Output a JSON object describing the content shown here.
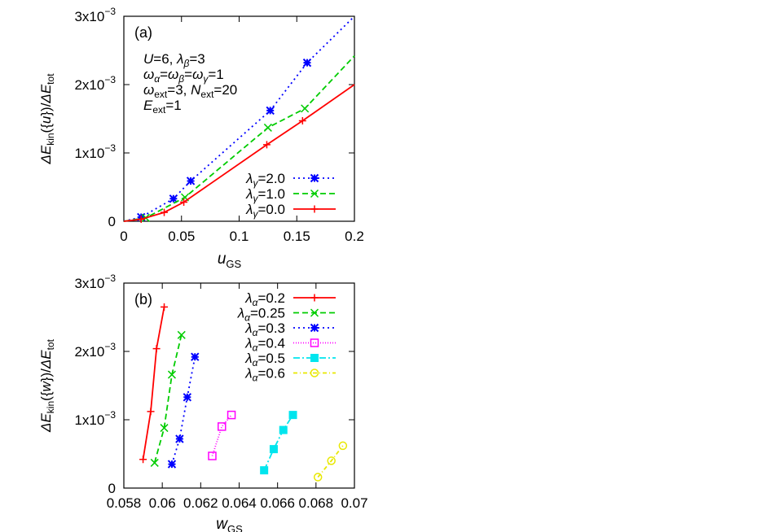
{
  "chart_data": [
    {
      "type": "line",
      "panel_label": "(a)",
      "xlabel": "u",
      "xlabel_sub": "GS",
      "ylabel": "ΔE_kin({u})/ΔE_tot",
      "xlim": [
        0,
        0.2
      ],
      "ylim": [
        0,
        0.003
      ],
      "xticks": [
        0,
        0.05,
        0.1,
        0.15,
        0.2
      ],
      "xtick_labels": [
        "0",
        "0.05",
        "0.1",
        "0.15",
        "0.2"
      ],
      "yticks": [
        0,
        0.001,
        0.002,
        0.003
      ],
      "ytick_labels": [
        {
          "base": "0",
          "exp": ""
        },
        {
          "base": "1x10",
          "exp": "−3"
        },
        {
          "base": "2x10",
          "exp": "−3"
        },
        {
          "base": "3x10",
          "exp": "−3"
        }
      ],
      "grid": false,
      "legend_placement": "bottom-right",
      "annotations": [
        [
          {
            "t": "U",
            "i": true
          },
          {
            "t": "=6, "
          },
          {
            "t": "λ",
            "i": true
          },
          {
            "t": "β",
            "i": true,
            "sub": true
          },
          {
            "t": "=3"
          }
        ],
        [
          {
            "t": "ω",
            "i": true
          },
          {
            "t": "α",
            "i": true,
            "sub": true
          },
          {
            "t": "="
          },
          {
            "t": "ω",
            "i": true
          },
          {
            "t": "β",
            "i": true,
            "sub": true
          },
          {
            "t": "="
          },
          {
            "t": "ω",
            "i": true
          },
          {
            "t": "γ",
            "i": true,
            "sub": true
          },
          {
            "t": "=1"
          }
        ],
        [
          {
            "t": "ω",
            "i": true
          },
          {
            "t": "ext",
            "sub": true
          },
          {
            "t": "=3, "
          },
          {
            "t": "N",
            "i": true
          },
          {
            "t": "ext",
            "sub": true
          },
          {
            "t": "=20"
          }
        ],
        [
          {
            "t": "E",
            "i": true
          },
          {
            "t": "ext",
            "sub": true
          },
          {
            "t": "=1"
          }
        ]
      ],
      "series": [
        {
          "name": "λγ=2.0",
          "label_sym": "λ",
          "label_sub": "γ",
          "label_val": "=2.0",
          "color": "#0000ff",
          "dash": "2,4",
          "marker": "star",
          "x": [
            0,
            0.015,
            0.043,
            0.058,
            0.127,
            0.159,
            0.2
          ],
          "y": [
            0.0,
            6e-05,
            0.00033,
            0.00059,
            0.00162,
            0.00232,
            0.003
          ]
        },
        {
          "name": "λγ=1.0",
          "label_sym": "λ",
          "label_sub": "γ",
          "label_val": "=1.0",
          "color": "#00cc00",
          "dash": "7,4",
          "marker": "x",
          "x": [
            0,
            0.019,
            0.053,
            0.125,
            0.157,
            0.2
          ],
          "y": [
            0.0,
            5e-05,
            0.00035,
            0.00137,
            0.00165,
            0.00242
          ]
        },
        {
          "name": "λγ=0.0",
          "label_sym": "λ",
          "label_sub": "γ",
          "label_val": "=0.0",
          "color": "#ff0000",
          "dash": "",
          "marker": "plus",
          "x": [
            0,
            0.015,
            0.035,
            0.052,
            0.124,
            0.155,
            0.2
          ],
          "y": [
            0.0,
            3e-05,
            0.00013,
            0.00028,
            0.00112,
            0.00147,
            0.002
          ]
        }
      ]
    },
    {
      "type": "line",
      "panel_label": "(b)",
      "xlabel": "w",
      "xlabel_sub": "GS",
      "ylabel": "ΔE_kin({w})/ΔE_tot",
      "xlim": [
        0.058,
        0.07
      ],
      "ylim": [
        0,
        0.003
      ],
      "xticks": [
        0.058,
        0.06,
        0.062,
        0.064,
        0.066,
        0.068,
        0.07
      ],
      "xtick_labels": [
        "0.058",
        "0.06",
        "0.062",
        "0.064",
        "0.066",
        "0.068",
        "0.07"
      ],
      "yticks": [
        0,
        0.001,
        0.002,
        0.003
      ],
      "ytick_labels": [
        {
          "base": "0",
          "exp": ""
        },
        {
          "base": "1x10",
          "exp": "−3"
        },
        {
          "base": "2x10",
          "exp": "−3"
        },
        {
          "base": "3x10",
          "exp": "−3"
        }
      ],
      "grid": false,
      "legend_placement": "top-right",
      "series": [
        {
          "name": "λα=0.2",
          "label_sym": "λ",
          "label_sub": "α",
          "label_val": "=0.2",
          "color": "#ff0000",
          "dash": "",
          "marker": "plus",
          "x": [
            0.059,
            0.0594,
            0.0597,
            0.0601
          ],
          "y": [
            0.00042,
            0.00112,
            0.00204,
            0.00265
          ]
        },
        {
          "name": "λα=0.25",
          "label_sym": "λ",
          "label_sub": "α",
          "label_val": "=0.25",
          "color": "#00cc00",
          "dash": "7,4",
          "marker": "x",
          "x": [
            0.0596,
            0.0601,
            0.0605,
            0.061
          ],
          "y": [
            0.00037,
            0.00088,
            0.00166,
            0.00224
          ]
        },
        {
          "name": "λα=0.3",
          "label_sym": "λ",
          "label_sub": "α",
          "label_val": "=0.3",
          "color": "#0000ff",
          "dash": "2,4",
          "marker": "star",
          "x": [
            0.0605,
            0.0609,
            0.0613,
            0.0617
          ],
          "y": [
            0.00035,
            0.00072,
            0.00133,
            0.00192
          ]
        },
        {
          "name": "λα=0.4",
          "label_sym": "λ",
          "label_sub": "α",
          "label_val": "=0.4",
          "color": "#ff00ff",
          "dash": "1,2",
          "marker": "square",
          "x": [
            0.0626,
            0.0631,
            0.0636
          ],
          "y": [
            0.00047,
            0.0009,
            0.00107
          ]
        },
        {
          "name": "λα=0.5",
          "label_sym": "λ",
          "label_sub": "α",
          "label_val": "=0.5",
          "color": "#00e5ee",
          "dash": "8,3,2,3",
          "marker": "filled-square",
          "x": [
            0.0653,
            0.0658,
            0.0663,
            0.0668
          ],
          "y": [
            0.00026,
            0.00057,
            0.00085,
            0.00107
          ]
        },
        {
          "name": "λα=0.6",
          "label_sym": "λ",
          "label_sub": "α",
          "label_val": "=0.6",
          "color": "#e8e800",
          "dash": "5,3,1,3",
          "marker": "circle",
          "x": [
            0.0681,
            0.0688,
            0.0694
          ],
          "y": [
            0.00016,
            0.0004,
            0.00062
          ]
        }
      ]
    }
  ]
}
